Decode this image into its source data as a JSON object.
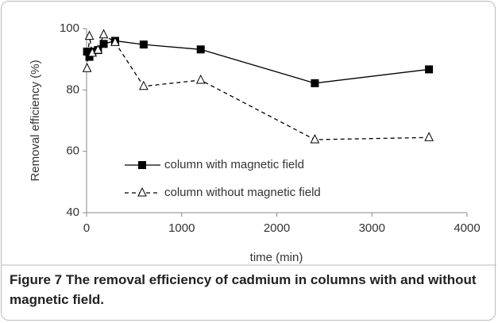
{
  "chart_data": {
    "type": "line",
    "x_label": "time (min)",
    "y_label": "Removal efficiency (%)",
    "x": [
      5,
      30,
      60,
      120,
      180,
      300,
      600,
      1200,
      2400,
      3600
    ],
    "series": [
      {
        "name": "column with magnetic field",
        "color": "#000000",
        "line_style": "solid",
        "marker": "square",
        "values": [
          92.5,
          90.8,
          92.5,
          93,
          95,
          96,
          94.8,
          93.2,
          82.2,
          86.7
        ]
      },
      {
        "name": "column without magnetic field",
        "color": "#000000",
        "line_style": "dashed",
        "marker": "triangle",
        "values": [
          87,
          97.5,
          92,
          93,
          98,
          95.5,
          81.2,
          83.2,
          63.8,
          64.5
        ]
      }
    ],
    "xlim": [
      0,
      4000
    ],
    "xticks": [
      0,
      1000,
      2000,
      3000,
      4000
    ],
    "ylim": [
      40,
      100
    ],
    "yticks": [
      40,
      60,
      80,
      100
    ],
    "grid": false,
    "legend": "center"
  },
  "caption": {
    "label": "Figure 7",
    "text": "The removal efficiency of cadmium in columns with and without magnetic field."
  }
}
